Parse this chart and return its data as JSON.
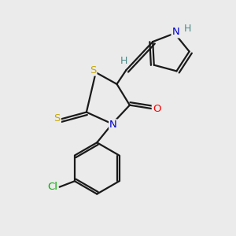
{
  "background_color": "#ebebeb",
  "bond_color": "#1a1a1a",
  "atom_colors": {
    "S": "#c8a800",
    "N_pyrrole": "#0000cc",
    "N_thiazolidine": "#0000cc",
    "O": "#ff0000",
    "Cl": "#00aa00",
    "H": "#4a8a8a",
    "C": "#1a1a1a"
  },
  "figsize": [
    3.0,
    3.0
  ],
  "dpi": 100
}
